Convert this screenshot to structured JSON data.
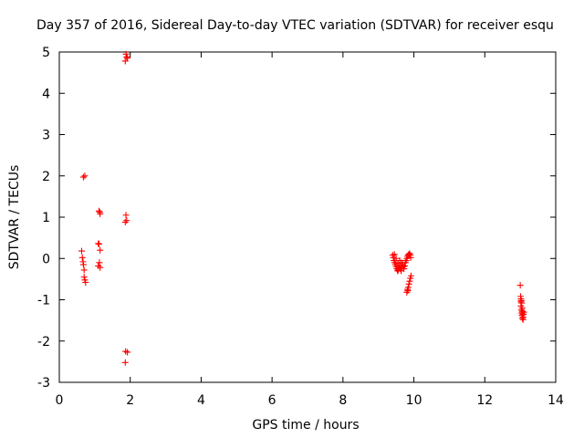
{
  "chart_data": {
    "type": "scatter",
    "title": "Day 357 of 2016, Sidereal Day-to-day VTEC variation (SDTVAR) for receiver esqu",
    "xlabel": "GPS time / hours",
    "ylabel": "SDTVAR / TECUs",
    "xlim": [
      0,
      14
    ],
    "ylim": [
      -3,
      5
    ],
    "xticks": [
      0,
      2,
      4,
      6,
      8,
      10,
      12,
      14
    ],
    "yticks": [
      -3,
      -2,
      -1,
      0,
      1,
      2,
      3,
      4,
      5
    ],
    "grid": false,
    "legend": "none",
    "marker": "plus",
    "color": "#ff0000",
    "series": [
      {
        "name": "SDTVAR",
        "points": [
          [
            0.63,
            0.18
          ],
          [
            0.65,
            0.02
          ],
          [
            0.67,
            -0.08
          ],
          [
            0.68,
            -0.15
          ],
          [
            0.7,
            -0.28
          ],
          [
            0.7,
            -0.45
          ],
          [
            0.72,
            -0.52
          ],
          [
            0.74,
            -0.58
          ],
          [
            0.68,
            1.97
          ],
          [
            0.72,
            2.0
          ],
          [
            1.12,
            1.15
          ],
          [
            1.14,
            1.12
          ],
          [
            1.15,
            1.08
          ],
          [
            1.1,
            0.36
          ],
          [
            1.12,
            0.35
          ],
          [
            1.15,
            0.2
          ],
          [
            1.13,
            -0.1
          ],
          [
            1.1,
            -0.18
          ],
          [
            1.15,
            -0.22
          ],
          [
            1.88,
            4.95
          ],
          [
            1.9,
            4.88
          ],
          [
            1.86,
            4.78
          ],
          [
            1.92,
            4.85
          ],
          [
            1.88,
            1.05
          ],
          [
            1.9,
            0.92
          ],
          [
            1.86,
            0.88
          ],
          [
            1.87,
            -2.25
          ],
          [
            1.92,
            -2.27
          ],
          [
            1.86,
            -2.52
          ],
          [
            9.4,
            0.08
          ],
          [
            9.42,
            0.02
          ],
          [
            9.44,
            -0.05
          ],
          [
            9.46,
            -0.1
          ],
          [
            9.48,
            -0.15
          ],
          [
            9.5,
            -0.2
          ],
          [
            9.52,
            -0.25
          ],
          [
            9.54,
            -0.3
          ],
          [
            9.56,
            -0.28
          ],
          [
            9.58,
            -0.22
          ],
          [
            9.6,
            -0.18
          ],
          [
            9.62,
            -0.25
          ],
          [
            9.64,
            -0.3
          ],
          [
            9.66,
            -0.22
          ],
          [
            9.68,
            -0.15
          ],
          [
            9.7,
            -0.2
          ],
          [
            9.72,
            -0.25
          ],
          [
            9.74,
            -0.18
          ],
          [
            9.76,
            -0.1
          ],
          [
            9.78,
            -0.05
          ],
          [
            9.8,
            0.0
          ],
          [
            9.82,
            0.05
          ],
          [
            9.84,
            0.08
          ],
          [
            9.86,
            0.1
          ],
          [
            9.88,
            0.12
          ],
          [
            9.9,
            0.08
          ],
          [
            9.91,
            0.02
          ],
          [
            9.45,
            0.1
          ],
          [
            9.5,
            0.0
          ],
          [
            9.55,
            -0.12
          ],
          [
            9.6,
            -0.05
          ],
          [
            9.65,
            -0.1
          ],
          [
            9.8,
            -0.82
          ],
          [
            9.82,
            -0.75
          ],
          [
            9.84,
            -0.7
          ],
          [
            9.86,
            -0.62
          ],
          [
            9.88,
            -0.55
          ],
          [
            9.9,
            -0.48
          ],
          [
            9.92,
            -0.42
          ],
          [
            9.83,
            -0.78
          ],
          [
            13.0,
            -0.65
          ],
          [
            13.01,
            -0.92
          ],
          [
            13.02,
            -0.98
          ],
          [
            13.03,
            -1.02
          ],
          [
            13.04,
            -1.08
          ],
          [
            13.02,
            -1.15
          ],
          [
            13.05,
            -1.2
          ],
          [
            13.03,
            -1.25
          ],
          [
            13.06,
            -1.28
          ],
          [
            13.04,
            -1.32
          ],
          [
            13.07,
            -1.35
          ],
          [
            13.05,
            -1.38
          ],
          [
            13.08,
            -1.42
          ],
          [
            13.06,
            -1.45
          ],
          [
            13.09,
            -1.35
          ],
          [
            13.1,
            -1.3
          ],
          [
            13.08,
            -1.48
          ],
          [
            13.02,
            -1.05
          ]
        ]
      }
    ]
  }
}
